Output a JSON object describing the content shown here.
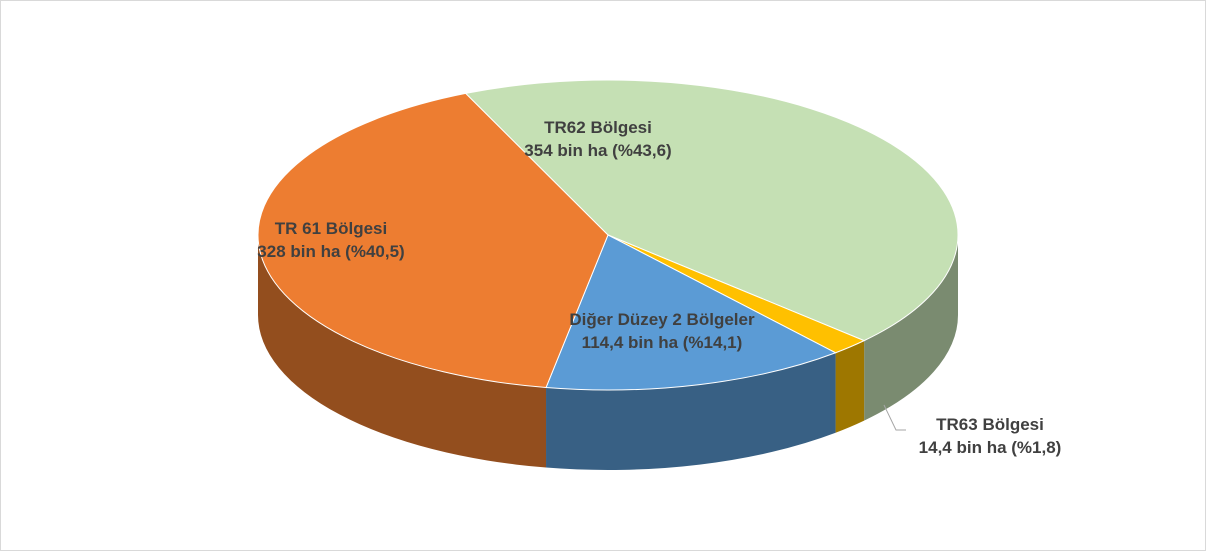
{
  "chart_data": {
    "type": "pie",
    "categories": [
      "TR62 Bölgesi",
      "TR63 Bölgesi",
      "Diğer Düzey 2 Bölgeler",
      "TR 61 Bölgesi"
    ],
    "values": [
      43.6,
      1.8,
      14.1,
      40.5
    ],
    "value_labels": [
      "354 bin ha (%43,6)",
      "14,4 bin ha (%1,8)",
      "114,4 bin ha (%14,1)",
      "328 bin ha (%40,5)"
    ],
    "colors": [
      "#c5e0b4",
      "#ffc000",
      "#5b9bd5",
      "#ed7d31"
    ]
  }
}
